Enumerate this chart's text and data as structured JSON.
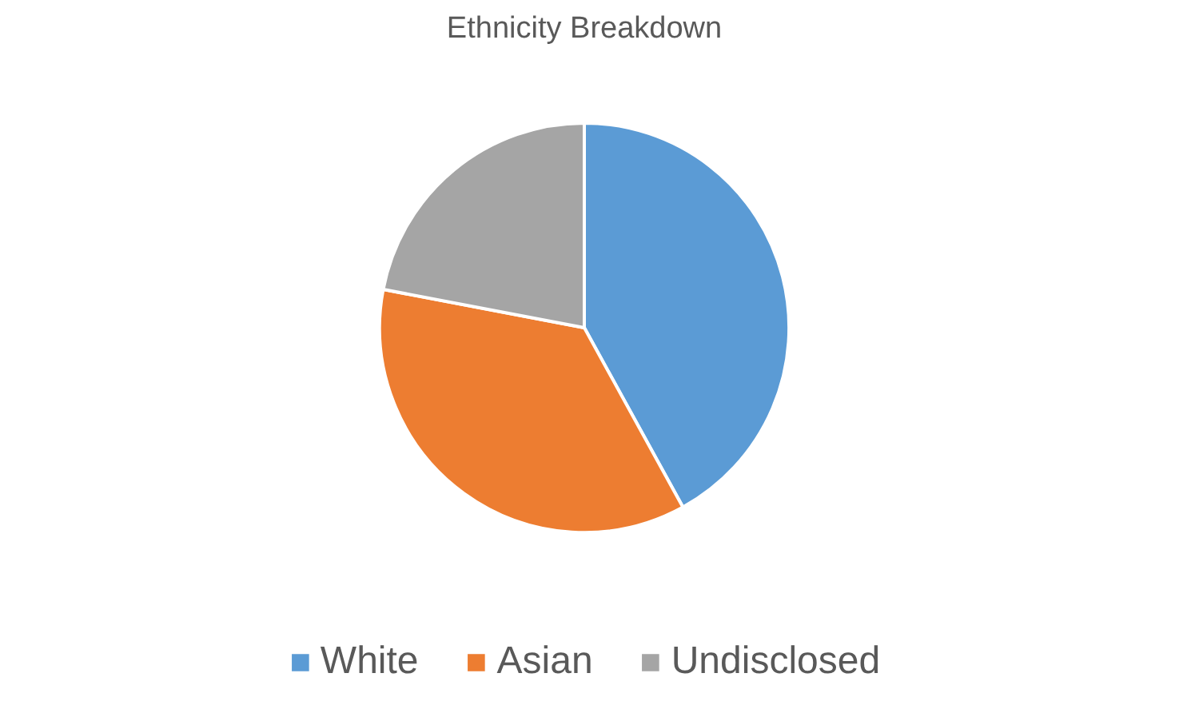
{
  "chart_data": {
    "type": "pie",
    "title": "Ethnicity Breakdown",
    "categories": [
      "White",
      "Asian",
      "Undisclosed"
    ],
    "values": [
      42,
      36,
      22
    ],
    "colors": [
      "#5b9bd5",
      "#ed7d31",
      "#a5a5a5"
    ],
    "legend": "bottom"
  }
}
